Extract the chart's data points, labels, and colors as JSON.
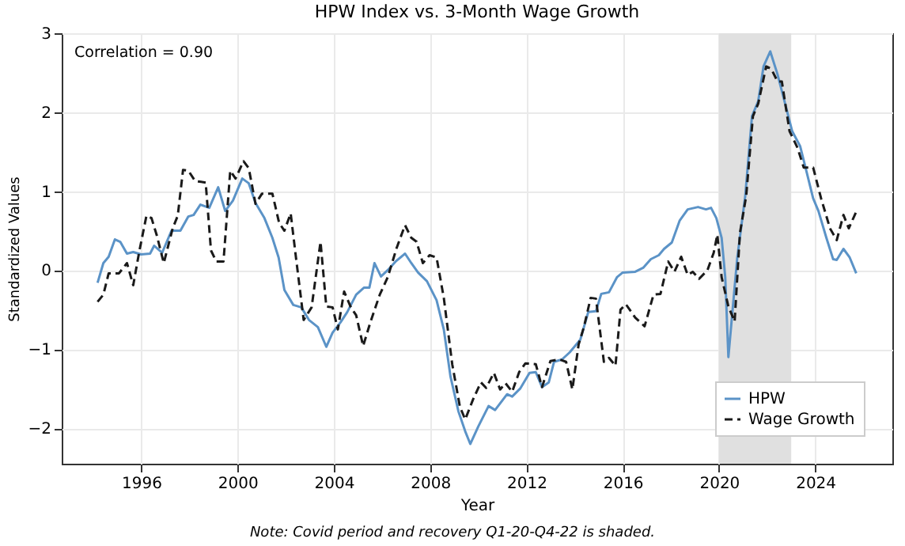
{
  "chart_data": {
    "type": "line",
    "title": "HPW Index vs. 3-Month Wage Growth",
    "xlabel": "Year",
    "ylabel": "Standardized Values",
    "annotations": [
      "Correlation = 0.90",
      "Note: Covid period and recovery Q1-20-Q4-22 is shaded."
    ],
    "xlim": [
      1992.7,
      2027.2
    ],
    "xticks": [
      1996,
      2000,
      2004,
      2008,
      2012,
      2016,
      2020,
      2024
    ],
    "ylim": [
      -2.45,
      3
    ],
    "yticks": [
      -2,
      -1,
      0,
      1,
      2,
      3
    ],
    "grid": true,
    "legend": "bottom right",
    "bands": [
      {
        "axis": "x",
        "from": 2020,
        "to": 2023,
        "color": "#e0e0e0"
      }
    ],
    "series": [
      {
        "name": "HPW",
        "color": "#5b93c7",
        "line_style": "solid",
        "x": [
          1994.19,
          1994.43,
          1994.65,
          1994.91,
          1995.13,
          1995.41,
          1995.67,
          1996.0,
          1996.37,
          1996.54,
          1996.87,
          1997.26,
          1997.63,
          1997.96,
          1998.18,
          1998.46,
          1998.83,
          1999.2,
          1999.49,
          1999.81,
          2000.2,
          2000.47,
          2000.75,
          2001.12,
          2001.45,
          2001.71,
          2001.95,
          2002.32,
          2002.65,
          2002.97,
          2003.34,
          2003.69,
          2003.95,
          2004.28,
          2004.56,
          2004.93,
          2005.26,
          2005.48,
          2005.69,
          2005.96,
          2006.24,
          2006.57,
          2006.96,
          2007.22,
          2007.5,
          2007.87,
          2008.27,
          2008.57,
          2008.85,
          2009.18,
          2009.46,
          2009.67,
          2010.0,
          2010.43,
          2010.7,
          2011.2,
          2011.41,
          2011.74,
          2012.13,
          2012.39,
          2012.65,
          2012.93,
          2013.15,
          2013.48,
          2013.8,
          2014.24,
          2014.57,
          2014.89,
          2015.11,
          2015.43,
          2015.76,
          2016.0,
          2016.52,
          2016.85,
          2017.17,
          2017.5,
          2017.72,
          2018.04,
          2018.37,
          2018.7,
          2019.13,
          2019.46,
          2019.67,
          2019.89,
          2020.11,
          2020.26,
          2020.39,
          2020.61,
          2020.76,
          2021.09,
          2021.37,
          2021.63,
          2021.85,
          2022.13,
          2022.43,
          2022.72,
          2023.04,
          2023.37,
          2023.65,
          2023.91,
          2024.13,
          2024.46,
          2024.74,
          2024.89,
          2025.17,
          2025.43,
          2025.7
        ],
        "values": [
          -0.16,
          0.09,
          0.17,
          0.39,
          0.36,
          0.21,
          0.23,
          0.2,
          0.21,
          0.31,
          0.22,
          0.5,
          0.5,
          0.68,
          0.7,
          0.83,
          0.79,
          1.05,
          0.75,
          0.88,
          1.16,
          1.1,
          0.85,
          0.66,
          0.41,
          0.16,
          -0.25,
          -0.44,
          -0.47,
          -0.63,
          -0.72,
          -0.97,
          -0.79,
          -0.66,
          -0.53,
          -0.31,
          -0.22,
          -0.22,
          0.09,
          -0.08,
          0.0,
          0.11,
          0.21,
          0.09,
          -0.03,
          -0.14,
          -0.38,
          -0.75,
          -1.35,
          -1.79,
          -2.04,
          -2.2,
          -1.98,
          -1.72,
          -1.77,
          -1.57,
          -1.6,
          -1.5,
          -1.3,
          -1.29,
          -1.48,
          -1.42,
          -1.16,
          -1.13,
          -1.04,
          -0.88,
          -0.53,
          -0.52,
          -0.3,
          -0.28,
          -0.09,
          -0.03,
          -0.02,
          0.03,
          0.14,
          0.19,
          0.27,
          0.35,
          0.63,
          0.77,
          0.8,
          0.77,
          0.79,
          0.66,
          0.41,
          -0.09,
          -1.1,
          -0.35,
          0.16,
          0.94,
          1.95,
          2.14,
          2.58,
          2.77,
          2.48,
          2.14,
          1.76,
          1.57,
          1.23,
          0.91,
          0.75,
          0.41,
          0.14,
          0.13,
          0.27,
          0.16,
          -0.04
        ]
      },
      {
        "name": "Wage Growth",
        "color": "#1a1a1a",
        "line_style": "dashed",
        "x": [
          1994.19,
          1994.43,
          1994.65,
          1995.08,
          1995.41,
          1995.67,
          1995.93,
          1996.22,
          1996.43,
          1996.65,
          1996.94,
          1997.31,
          1997.52,
          1997.74,
          1997.96,
          1998.24,
          1998.68,
          1998.9,
          1999.12,
          1999.42,
          1999.7,
          1999.92,
          2000.25,
          2000.47,
          2000.75,
          2001.02,
          2001.45,
          2001.73,
          2001.95,
          2002.21,
          2002.43,
          2002.75,
          2003.08,
          2003.45,
          2003.69,
          2003.95,
          2004.17,
          2004.43,
          2004.71,
          2004.93,
          2005.22,
          2005.52,
          2005.91,
          2006.24,
          2006.61,
          2006.96,
          2007.22,
          2007.44,
          2007.7,
          2007.98,
          2008.27,
          2008.57,
          2008.92,
          2009.24,
          2009.46,
          2009.78,
          2010.11,
          2010.33,
          2010.65,
          2010.91,
          2011.13,
          2011.41,
          2011.7,
          2011.96,
          2012.39,
          2012.65,
          2013.0,
          2013.37,
          2013.65,
          2013.91,
          2014.17,
          2014.39,
          2014.67,
          2014.89,
          2015.22,
          2015.43,
          2015.7,
          2015.91,
          2016.13,
          2016.52,
          2016.91,
          2017.28,
          2017.57,
          2017.89,
          2018.15,
          2018.43,
          2018.7,
          2018.91,
          2019.17,
          2019.52,
          2019.78,
          2019.93,
          2020.11,
          2020.39,
          2020.65,
          2020.87,
          2021.13,
          2021.41,
          2021.63,
          2021.96,
          2022.17,
          2022.43,
          2022.61,
          2022.93,
          2023.26,
          2023.52,
          2023.91,
          2024.24,
          2024.61,
          2024.89,
          2025.17,
          2025.39,
          2025.7
        ],
        "values": [
          -0.4,
          -0.31,
          -0.04,
          -0.04,
          0.09,
          -0.19,
          0.25,
          0.69,
          0.66,
          0.44,
          0.09,
          0.53,
          0.69,
          1.27,
          1.26,
          1.13,
          1.11,
          0.25,
          0.11,
          0.11,
          1.26,
          1.16,
          1.38,
          1.29,
          0.84,
          0.97,
          0.97,
          0.6,
          0.5,
          0.72,
          0.16,
          -0.63,
          -0.47,
          0.36,
          -0.46,
          -0.47,
          -0.75,
          -0.27,
          -0.47,
          -0.57,
          -0.96,
          -0.66,
          -0.31,
          -0.09,
          0.28,
          0.57,
          0.41,
          0.36,
          0.09,
          0.19,
          0.16,
          -0.35,
          -1.19,
          -1.73,
          -1.89,
          -1.64,
          -1.42,
          -1.49,
          -1.3,
          -1.51,
          -1.43,
          -1.54,
          -1.29,
          -1.18,
          -1.19,
          -1.48,
          -1.15,
          -1.13,
          -1.16,
          -1.51,
          -0.94,
          -0.72,
          -0.35,
          -0.36,
          -1.16,
          -1.11,
          -1.21,
          -0.5,
          -0.43,
          -0.6,
          -0.71,
          -0.31,
          -0.3,
          0.11,
          -0.02,
          0.17,
          -0.06,
          -0.02,
          -0.11,
          0.0,
          0.22,
          0.45,
          -0.09,
          -0.46,
          -0.65,
          0.47,
          0.94,
          1.95,
          2.11,
          2.58,
          2.55,
          2.39,
          2.39,
          1.76,
          1.55,
          1.3,
          1.3,
          0.91,
          0.53,
          0.38,
          0.7,
          0.53,
          0.74
        ]
      }
    ]
  }
}
